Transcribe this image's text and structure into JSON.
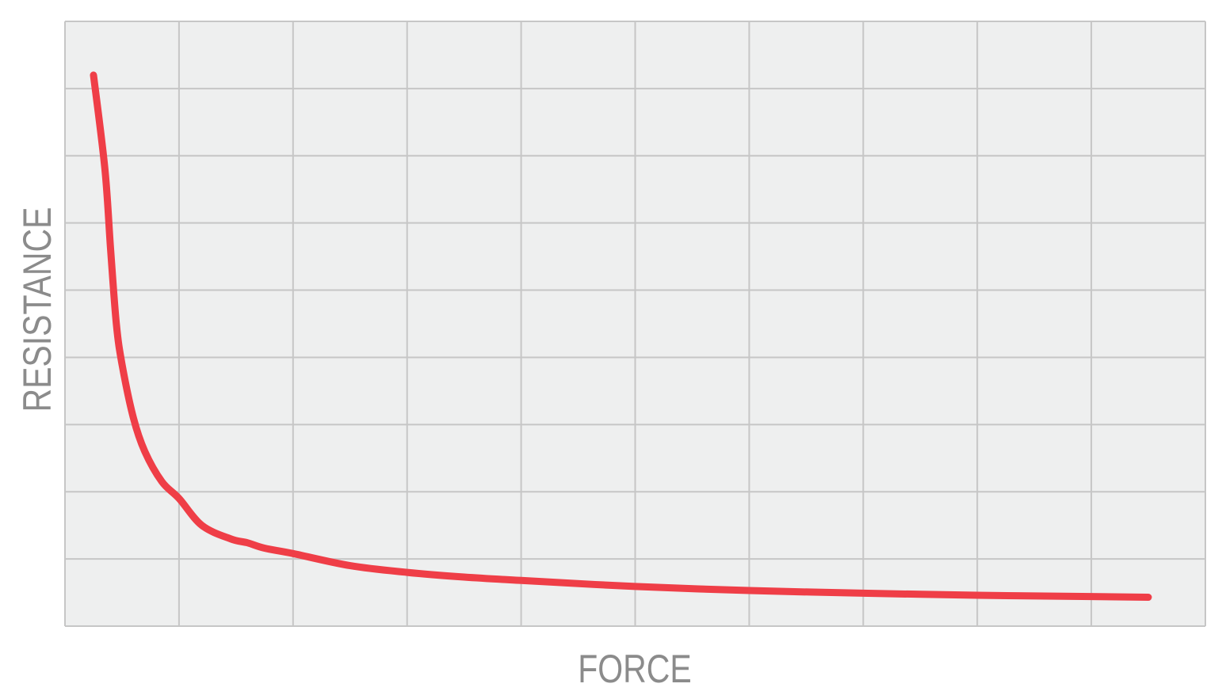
{
  "chart_data": {
    "type": "line",
    "title": "",
    "xlabel": "FORCE",
    "ylabel": "RESISTANCE",
    "xlim": [
      0,
      10
    ],
    "ylim": [
      0,
      9
    ],
    "grid": true,
    "legend": "none",
    "x_tick_labels": [],
    "y_tick_labels": [],
    "series": [
      {
        "color": "#ef3e47",
        "points": [
          [
            0.25,
            8.2
          ],
          [
            0.35,
            6.8
          ],
          [
            0.4,
            5.6
          ],
          [
            0.45,
            4.5
          ],
          [
            0.5,
            3.9
          ],
          [
            0.6,
            3.1
          ],
          [
            0.7,
            2.6
          ],
          [
            0.85,
            2.15
          ],
          [
            1.0,
            1.9
          ],
          [
            1.2,
            1.5
          ],
          [
            1.45,
            1.3
          ],
          [
            1.6,
            1.24
          ],
          [
            1.75,
            1.16
          ],
          [
            2.0,
            1.08
          ],
          [
            2.5,
            0.9
          ],
          [
            3.0,
            0.8
          ],
          [
            3.5,
            0.73
          ],
          [
            4.0,
            0.68
          ],
          [
            5.0,
            0.59
          ],
          [
            6.0,
            0.53
          ],
          [
            7.0,
            0.49
          ],
          [
            8.0,
            0.46
          ],
          [
            9.0,
            0.44
          ],
          [
            9.5,
            0.43
          ]
        ]
      }
    ],
    "colors": {
      "plot_background": "#eeefef",
      "grid": "#c6c6c6",
      "line": "#ef3e47",
      "axis_title": "#8b8b8b"
    }
  }
}
